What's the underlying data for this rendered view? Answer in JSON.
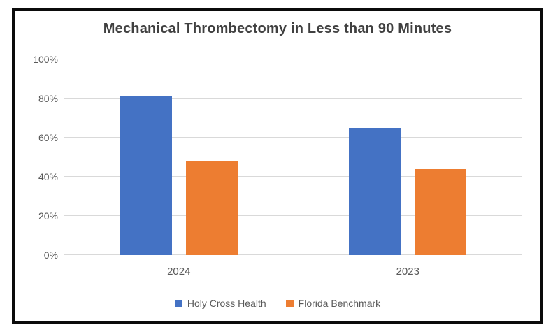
{
  "chart_data": {
    "type": "bar",
    "title": "Mechanical Thrombectomy in Less than 90 Minutes",
    "categories": [
      "2024",
      "2023"
    ],
    "series": [
      {
        "name": "Holy Cross Health",
        "color": "#4472C4",
        "values": [
          81,
          65
        ]
      },
      {
        "name": "Florida Benchmark",
        "color": "#ED7D31",
        "values": [
          48,
          44
        ]
      }
    ],
    "ylim": [
      0,
      100
    ],
    "yticks": [
      "0%",
      "20%",
      "40%",
      "60%",
      "80%",
      "100%"
    ],
    "ytick_values": [
      0,
      20,
      40,
      60,
      80,
      100
    ],
    "grid": true,
    "legend_position": "bottom",
    "colors": {
      "title_text": "#404040",
      "axis_text": "#595959",
      "gridline": "#D9D9D9",
      "frame_border": "#0b0b0b",
      "background": "#ffffff"
    }
  }
}
